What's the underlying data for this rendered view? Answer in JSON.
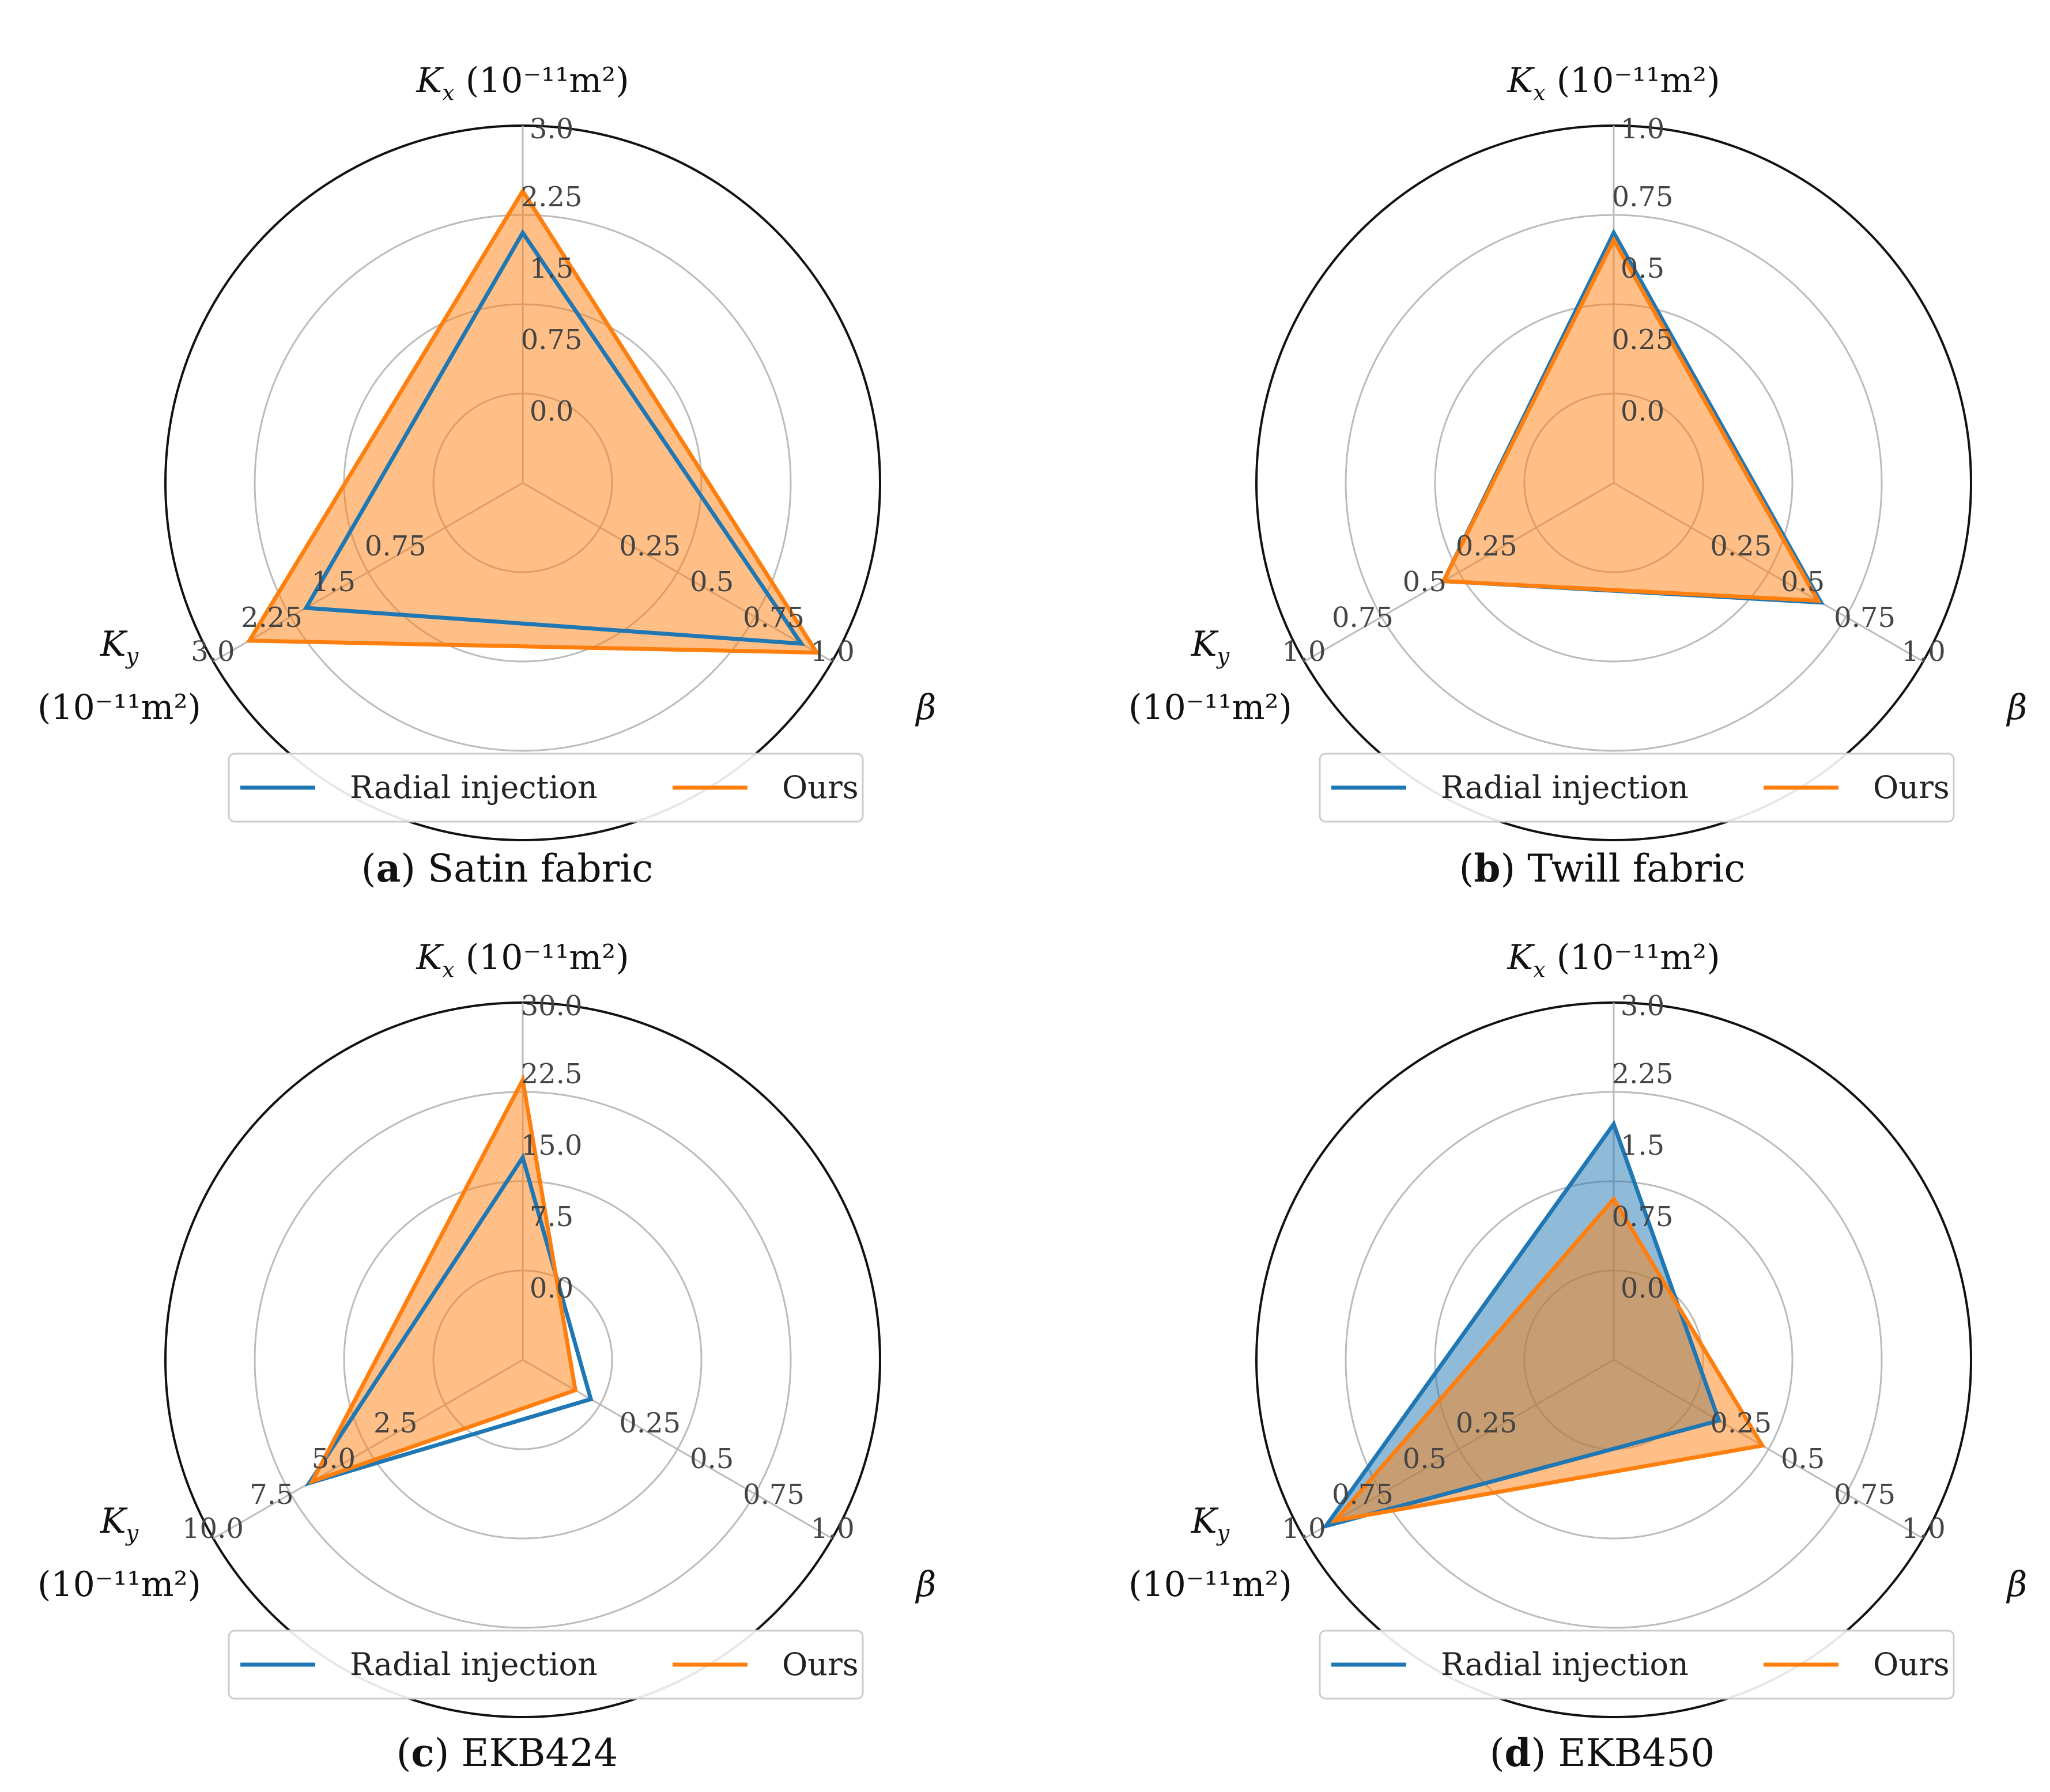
{
  "legend_labels": [
    "Radial injection",
    "Ours"
  ],
  "colors": {
    "radial": "#1f77b4",
    "ours": "#ff7f0e"
  },
  "chart_data": [
    {
      "type": "radar",
      "caption": {
        "letter": "a",
        "text": " Satin fabric"
      },
      "axes": [
        {
          "key": "kx",
          "label": "K",
          "sub": "x",
          "unit": "(10⁻¹¹m²)",
          "ticks": [
            "0.0",
            "0.75",
            "1.5",
            "2.25",
            "3.0"
          ],
          "max": 3.0
        },
        {
          "key": "beta",
          "label": "β",
          "sub": "",
          "unit": "",
          "ticks": [
            "0.25",
            "0.5",
            "0.75",
            "1.0"
          ],
          "max": 1.0
        },
        {
          "key": "ky",
          "label": "K",
          "sub": "y",
          "unit": "(10⁻¹¹m²)",
          "ticks": [
            "0.75",
            "1.5",
            "2.25",
            "3.0"
          ],
          "max": 3.0
        }
      ],
      "series": [
        {
          "name": "Radial injection",
          "values": [
            2.1,
            0.9,
            2.1
          ],
          "fill": false
        },
        {
          "name": "Ours",
          "values": [
            2.45,
            0.95,
            2.65
          ],
          "fill": true
        }
      ]
    },
    {
      "type": "radar",
      "caption": {
        "letter": "b",
        "text": " Twill fabric"
      },
      "axes": [
        {
          "key": "kx",
          "label": "K",
          "sub": "x",
          "unit": "(10⁻¹¹m²)",
          "ticks": [
            "0.0",
            "0.25",
            "0.5",
            "0.75",
            "1.0"
          ],
          "max": 1.0
        },
        {
          "key": "beta",
          "label": "β",
          "sub": "",
          "unit": "",
          "ticks": [
            "0.25",
            "0.5",
            "0.75",
            "1.0"
          ],
          "max": 1.0
        },
        {
          "key": "ky",
          "label": "K",
          "sub": "y",
          "unit": "(10⁻¹¹m²)",
          "ticks": [
            "0.25",
            "0.5",
            "0.75",
            "1.0"
          ],
          "max": 1.0
        }
      ],
      "series": [
        {
          "name": "Radial injection",
          "values": [
            0.7,
            0.67,
            0.55
          ],
          "fill": false
        },
        {
          "name": "Ours",
          "values": [
            0.68,
            0.66,
            0.55
          ],
          "fill": true
        }
      ]
    },
    {
      "type": "radar",
      "caption": {
        "letter": "c",
        "text": " EKB424"
      },
      "axes": [
        {
          "key": "kx",
          "label": "K",
          "sub": "x",
          "unit": "(10⁻¹¹m²)",
          "ticks": [
            "0.0",
            "7.5",
            "15.0",
            "22.5",
            "30.0"
          ],
          "max": 30.0
        },
        {
          "key": "beta",
          "label": "β",
          "sub": "",
          "unit": "",
          "ticks": [
            "0.25",
            "0.5",
            "0.75",
            "1.0"
          ],
          "max": 1.0
        },
        {
          "key": "ky",
          "label": "K",
          "sub": "y",
          "unit": "(10⁻¹¹m²)",
          "ticks": [
            "2.5",
            "5.0",
            "7.5",
            "10.0"
          ],
          "max": 10.0
        }
      ],
      "series": [
        {
          "name": "Radial injection",
          "values": [
            17.0,
            0.22,
            6.9
          ],
          "fill": false
        },
        {
          "name": "Ours",
          "values": [
            23.5,
            0.17,
            6.8
          ],
          "fill": true
        }
      ]
    },
    {
      "type": "radar",
      "caption": {
        "letter": "d",
        "text": " EKB450"
      },
      "axes": [
        {
          "key": "kx",
          "label": "K",
          "sub": "x",
          "unit": "(10⁻¹¹m²)",
          "ticks": [
            "0.0",
            "0.75",
            "1.5",
            "2.25",
            "3.0"
          ],
          "max": 3.0
        },
        {
          "key": "beta",
          "label": "β",
          "sub": "",
          "unit": "",
          "ticks": [
            "0.25",
            "0.5",
            "0.75",
            "1.0"
          ],
          "max": 1.0
        },
        {
          "key": "ky",
          "label": "K",
          "sub": "y",
          "unit": "(10⁻¹¹m²)",
          "ticks": [
            "0.25",
            "0.5",
            "0.75",
            "1.0"
          ],
          "max": 1.0
        }
      ],
      "series": [
        {
          "name": "Radial injection",
          "values": [
            1.98,
            0.34,
            0.93
          ],
          "fill": true
        },
        {
          "name": "Ours",
          "values": [
            1.35,
            0.48,
            0.9
          ],
          "fill": true
        }
      ]
    }
  ]
}
